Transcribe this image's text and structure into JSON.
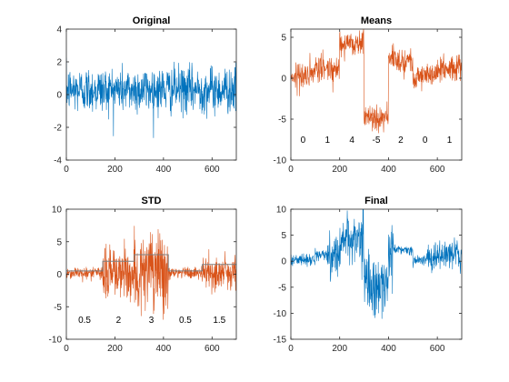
{
  "chart_data": [
    {
      "type": "line",
      "title": "Original",
      "xlim": [
        0,
        700
      ],
      "ylim": [
        -4,
        4
      ],
      "xticks": [
        "0",
        "200",
        "400",
        "600"
      ],
      "yticks": [
        "-4",
        "-2",
        "0",
        "2",
        "4"
      ],
      "grid": false,
      "series_color": "#0072BD",
      "signal": {
        "n": 700,
        "segments": [
          {
            "start": 0,
            "end": 700,
            "mean": 0.3,
            "std": 0.7
          }
        ]
      },
      "segment_labels": []
    },
    {
      "type": "line",
      "title": "Means",
      "xlim": [
        0,
        700
      ],
      "ylim": [
        -10,
        6
      ],
      "xticks": [
        "0",
        "200",
        "400",
        "600"
      ],
      "yticks": [
        "-10",
        "-5",
        "0",
        "5"
      ],
      "grid": false,
      "series_color": "#D95319",
      "signal": {
        "n": 700,
        "segments": [
          {
            "start": 0,
            "end": 100,
            "mean": 0.3,
            "std": 0.8
          },
          {
            "start": 100,
            "end": 200,
            "mean": 1.2,
            "std": 0.8
          },
          {
            "start": 200,
            "end": 300,
            "mean": 4.3,
            "std": 0.8
          },
          {
            "start": 300,
            "end": 400,
            "mean": -4.7,
            "std": 0.8
          },
          {
            "start": 400,
            "end": 500,
            "mean": 2.2,
            "std": 0.8
          },
          {
            "start": 500,
            "end": 600,
            "mean": 0.3,
            "std": 0.8
          },
          {
            "start": 600,
            "end": 700,
            "mean": 1.2,
            "std": 0.8
          }
        ]
      },
      "segment_labels": [
        {
          "x": 50,
          "y": -7.5,
          "text": "0"
        },
        {
          "x": 150,
          "y": -7.5,
          "text": "1"
        },
        {
          "x": 250,
          "y": -7.5,
          "text": "4"
        },
        {
          "x": 350,
          "y": -7.5,
          "text": "-5"
        },
        {
          "x": 450,
          "y": -7.5,
          "text": "2"
        },
        {
          "x": 550,
          "y": -7.5,
          "text": "0"
        },
        {
          "x": 650,
          "y": -7.5,
          "text": "1"
        }
      ]
    },
    {
      "type": "line",
      "title": "STD",
      "xlim": [
        0,
        700
      ],
      "ylim": [
        -10,
        10
      ],
      "xticks": [
        "0",
        "200",
        "400",
        "600"
      ],
      "yticks": [
        "-10",
        "-5",
        "0",
        "5",
        "10"
      ],
      "grid": false,
      "series_color": "#D95319",
      "signal": {
        "n": 700,
        "segments": [
          {
            "start": 0,
            "end": 150,
            "mean": 0.2,
            "std": 0.5
          },
          {
            "start": 150,
            "end": 280,
            "mean": 0.2,
            "std": 2
          },
          {
            "start": 280,
            "end": 420,
            "mean": 0.2,
            "std": 3
          },
          {
            "start": 420,
            "end": 560,
            "mean": 0.2,
            "std": 0.5
          },
          {
            "start": 560,
            "end": 700,
            "mean": 0.2,
            "std": 1.5
          }
        ]
      },
      "step_line": [
        {
          "start": 0,
          "end": 150,
          "value": 0.5
        },
        {
          "start": 150,
          "end": 280,
          "value": 2
        },
        {
          "start": 280,
          "end": 420,
          "value": 3
        },
        {
          "start": 420,
          "end": 560,
          "value": 0.5
        },
        {
          "start": 560,
          "end": 700,
          "value": 1.5
        }
      ],
      "segment_labels": [
        {
          "x": 75,
          "y": -7,
          "text": "0.5"
        },
        {
          "x": 215,
          "y": -7,
          "text": "2"
        },
        {
          "x": 350,
          "y": -7,
          "text": "3"
        },
        {
          "x": 490,
          "y": -7,
          "text": "0.5"
        },
        {
          "x": 630,
          "y": -7,
          "text": "1.5"
        }
      ]
    },
    {
      "type": "line",
      "title": "Final",
      "xlim": [
        0,
        700
      ],
      "ylim": [
        -15,
        10
      ],
      "xticks": [
        "0",
        "200",
        "400",
        "600"
      ],
      "yticks": [
        "-15",
        "-10",
        "-5",
        "0",
        "5",
        "10"
      ],
      "grid": false,
      "series_color": "#0072BD",
      "signal": {
        "n": 700,
        "segments": [
          {
            "start": 0,
            "end": 100,
            "mean": 0.3,
            "std": 0.5
          },
          {
            "start": 100,
            "end": 150,
            "mean": 1.2,
            "std": 0.5
          },
          {
            "start": 150,
            "end": 200,
            "mean": 1.2,
            "std": 2
          },
          {
            "start": 200,
            "end": 280,
            "mean": 4.3,
            "std": 2
          },
          {
            "start": 280,
            "end": 300,
            "mean": 4.3,
            "std": 3
          },
          {
            "start": 300,
            "end": 400,
            "mean": -4.7,
            "std": 3
          },
          {
            "start": 400,
            "end": 420,
            "mean": 2.2,
            "std": 3
          },
          {
            "start": 420,
            "end": 500,
            "mean": 2.2,
            "std": 0.5
          },
          {
            "start": 500,
            "end": 560,
            "mean": 0.3,
            "std": 0.5
          },
          {
            "start": 560,
            "end": 600,
            "mean": 0.3,
            "std": 1.5
          },
          {
            "start": 600,
            "end": 700,
            "mean": 1.2,
            "std": 1.5
          }
        ]
      },
      "segment_labels": []
    }
  ]
}
